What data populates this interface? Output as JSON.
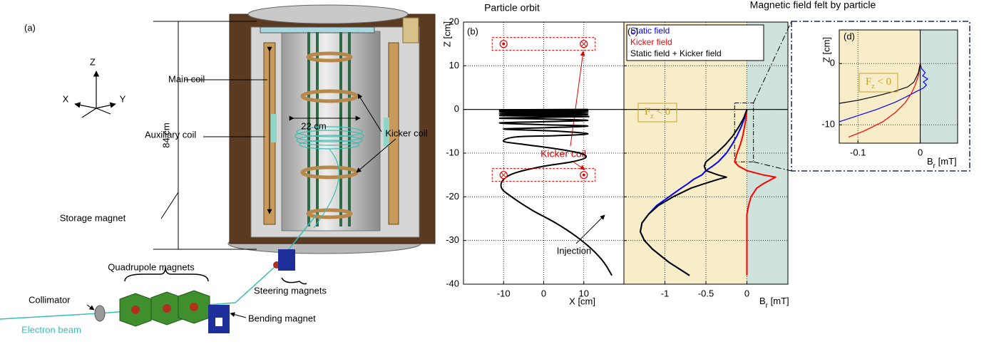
{
  "diagram": {
    "panel_label": "(a)",
    "axes": {
      "z": "Z",
      "x": "X",
      "y": "Y"
    },
    "labels": {
      "main_coil": "Main coil",
      "auxiliary_coil": "Auxiliary coil",
      "width": "22 cm",
      "kicker_coil": "Kicker coil",
      "height": "84 cm",
      "storage_magnet": "Storage magnet",
      "quadrupole_magnets": "Quadrupole magnets",
      "collimator": "Collimator",
      "steering_magnets": "Steering magnets",
      "bending_magnet": "Bending magnet",
      "electron_beam": "Electron beam"
    }
  },
  "chart_data": [
    {
      "type": "line",
      "panel_label": "(b)",
      "title": "Particle orbit",
      "xlabel": "X [cm]",
      "ylabel": "Z [cm]",
      "xlim": [
        -20,
        20
      ],
      "ylim": [
        -40,
        20
      ],
      "xticks": [
        -10,
        0,
        10
      ],
      "yticks": [
        -40,
        -30,
        -20,
        -10,
        0,
        10,
        20
      ],
      "grid": true,
      "series": [
        {
          "color": "#000000",
          "x": [
            17,
            15,
            12,
            8,
            3,
            -3,
            -8,
            -10.5,
            -10,
            -7,
            0,
            7,
            10.5,
            9,
            3,
            -5,
            -10,
            -7,
            3,
            11,
            4,
            -10,
            0,
            11,
            0,
            -11,
            0,
            11,
            0,
            -11,
            0,
            11,
            -11,
            11,
            -11,
            11,
            -11,
            11,
            -11,
            11,
            -11,
            11
          ],
          "values": [
            -38,
            -35,
            -32,
            -29,
            -26,
            -23,
            -20,
            -18,
            -16,
            -14.5,
            -13,
            -12,
            -11,
            -10,
            -9,
            -8,
            -7.3,
            -6.3,
            -6,
            -5.6,
            -5,
            -4.5,
            -4.2,
            -3.8,
            -3.5,
            -3.1,
            -2.8,
            -2.5,
            -2.2,
            -2,
            -1.8,
            -1.6,
            -1.4,
            -1.2,
            -1,
            -0.8,
            -0.6,
            -0.4,
            -0.3,
            -0.2,
            -0.1,
            0
          ]
        }
      ],
      "coil_markers": {
        "x": [
          -10,
          10,
          -10,
          10
        ],
        "values": [
          15,
          15,
          -15,
          -15
        ],
        "direction": [
          "out",
          "in",
          "in",
          "out"
        ],
        "color": "#e00000"
      },
      "annotations": {
        "kicker_coil": "Kicker coil",
        "injection": "Injection"
      }
    },
    {
      "type": "line",
      "panel_label": "(c)",
      "title": "Magnetic field felt by particle",
      "xlabel": {
        "main": "B",
        "sub": "r",
        "rest": " [mT]"
      },
      "xlim": [
        -1.5,
        0.5
      ],
      "ylim": [
        -40,
        20
      ],
      "xticks": [
        -1,
        -0.5,
        0
      ],
      "yticks": [
        -40,
        -30,
        -20,
        -10,
        0,
        10,
        20
      ],
      "ytick_labels": false,
      "grid": true,
      "shade_negative": "#f7edc9",
      "shade_positive": "#cfe3dc",
      "legend": "upper left",
      "series": [
        {
          "name": "Static field",
          "color": "#0000ff",
          "x": [
            -0.7,
            -0.95,
            -1.15,
            -1.25,
            -1.3,
            -1.28,
            -1.2,
            -1.1,
            -0.95,
            -0.8,
            -0.72,
            -0.65,
            -0.6,
            -0.55,
            -0.5,
            -0.42,
            -0.35,
            -0.25,
            -0.18,
            -0.12,
            -0.07,
            -0.03,
            0
          ],
          "values": [
            -38,
            -35,
            -32,
            -30,
            -28,
            -26,
            -24,
            -22,
            -20,
            -18,
            -17,
            -16,
            -15.5,
            -15,
            -14,
            -13,
            -12,
            -10,
            -8,
            -6,
            -4,
            -2,
            0
          ]
        },
        {
          "name": "Kicker field",
          "color": "#ff0000",
          "x": [
            0,
            0,
            0,
            0,
            0,
            0,
            0,
            0.02,
            0.05,
            0.12,
            0.2,
            0.3,
            0.35,
            0.2,
            0,
            -0.1,
            -0.15,
            -0.12,
            -0.08,
            -0.05,
            -0.03,
            -0.01,
            0
          ],
          "values": [
            -38,
            -35,
            -32,
            -30,
            -28,
            -26,
            -24,
            -22,
            -20,
            -18,
            -17,
            -16,
            -15.5,
            -15,
            -14,
            -13,
            -12,
            -10,
            -8,
            -6,
            -4,
            -2,
            0
          ]
        },
        {
          "name": "Static field + Kicker field",
          "color": "#000000",
          "x": [
            -0.7,
            -0.95,
            -1.15,
            -1.25,
            -1.3,
            -1.28,
            -1.2,
            -1.08,
            -0.9,
            -0.68,
            -0.52,
            -0.35,
            -0.25,
            -0.35,
            -0.5,
            -0.52,
            -0.5,
            -0.37,
            -0.26,
            -0.17,
            -0.1,
            -0.04,
            0
          ],
          "values": [
            -38,
            -35,
            -32,
            -30,
            -28,
            -26,
            -24,
            -22,
            -20,
            -18,
            -17,
            -16,
            -15.5,
            -15,
            -14,
            -13,
            -12,
            -10,
            -8,
            -6,
            -4,
            -2,
            0
          ]
        }
      ],
      "zoom_box": {
        "x": [
          -0.15,
          0.08
        ],
        "values": [
          -12,
          1.5
        ]
      },
      "annotation": {
        "main": "F",
        "sub": "z",
        "rest": " < 0"
      }
    },
    {
      "type": "line",
      "panel_label": "(d)",
      "xlabel": {
        "main": "B",
        "sub": "r",
        "rest": " [mT]"
      },
      "ylabel": "Z [cm]",
      "xlim": [
        -0.13,
        0.06
      ],
      "ylim": [
        -13,
        5.5
      ],
      "xticks": [
        -0.1,
        0
      ],
      "yticks": [
        -10,
        0
      ],
      "grid": true,
      "shade_negative": "#f7edc9",
      "shade_positive": "#cfe3dc",
      "series": [
        {
          "color": "#0000ff",
          "x": [
            -0.13,
            -0.1,
            -0.07,
            -0.04,
            -0.02,
            -0.005,
            0.005,
            0.01,
            0.005,
            0.012,
            0.004,
            0.008,
            0.002,
            0
          ],
          "values": [
            -9.5,
            -8.5,
            -7.5,
            -6.3,
            -5.3,
            -4.5,
            -4,
            -3.5,
            -3,
            -2.5,
            -2,
            -1.5,
            -0.8,
            0
          ]
        },
        {
          "color": "#ff0000",
          "x": [
            -0.115,
            -0.09,
            -0.06,
            -0.04,
            -0.025,
            -0.015,
            -0.008,
            -0.003,
            0
          ],
          "values": [
            -12,
            -11,
            -9.5,
            -8,
            -6.5,
            -5,
            -3.5,
            -2,
            0
          ]
        },
        {
          "color": "#000000",
          "x": [
            -0.13,
            -0.1,
            -0.07,
            -0.04,
            -0.02,
            -0.01,
            -0.003,
            0
          ],
          "values": [
            -6.5,
            -6,
            -5.3,
            -4.5,
            -3.8,
            -3,
            -1.5,
            0
          ]
        }
      ],
      "annotation": {
        "main": "F",
        "sub": "z",
        "rest": " < 0"
      }
    }
  ]
}
